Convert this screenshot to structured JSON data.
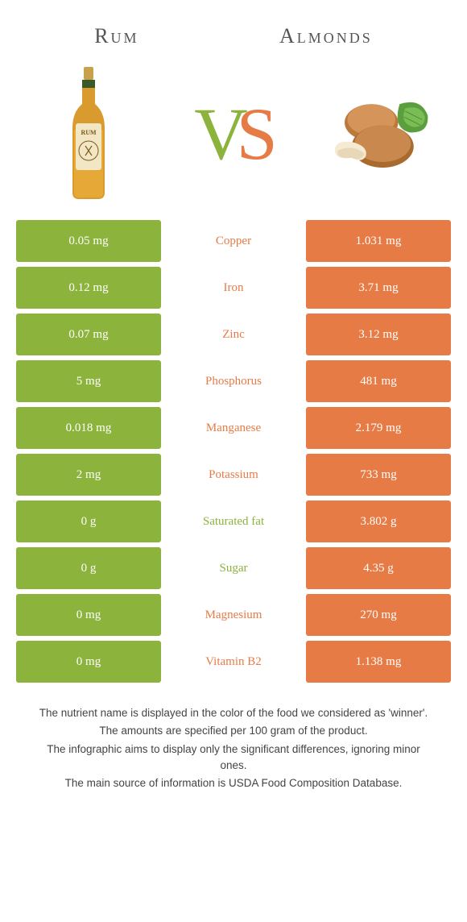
{
  "colors": {
    "left": "#8cb33b",
    "right": "#e77b46",
    "vs_v": "#8cb33b",
    "vs_s": "#e77b46"
  },
  "titles": {
    "left": "Rum",
    "right": "Almonds"
  },
  "rows": [
    {
      "left": "0.05 mg",
      "label": "Copper",
      "right": "1.031 mg",
      "winner": "right"
    },
    {
      "left": "0.12 mg",
      "label": "Iron",
      "right": "3.71 mg",
      "winner": "right"
    },
    {
      "left": "0.07 mg",
      "label": "Zinc",
      "right": "3.12 mg",
      "winner": "right"
    },
    {
      "left": "5 mg",
      "label": "Phosphorus",
      "right": "481 mg",
      "winner": "right"
    },
    {
      "left": "0.018 mg",
      "label": "Manganese",
      "right": "2.179 mg",
      "winner": "right"
    },
    {
      "left": "2 mg",
      "label": "Potassium",
      "right": "733 mg",
      "winner": "right"
    },
    {
      "left": "0 g",
      "label": "Saturated fat",
      "right": "3.802 g",
      "winner": "left"
    },
    {
      "left": "0 g",
      "label": "Sugar",
      "right": "4.35 g",
      "winner": "left"
    },
    {
      "left": "0 mg",
      "label": "Magnesium",
      "right": "270 mg",
      "winner": "right"
    },
    {
      "left": "0 mg",
      "label": "Vitamin B2",
      "right": "1.138 mg",
      "winner": "right"
    }
  ],
  "footnotes": [
    "The nutrient name is displayed in the color of the food we considered as 'winner'.",
    "The amounts are specified per 100 gram of the product.",
    "The infographic aims to display only the significant differences, ignoring minor ones.",
    "The main source of information is USDA Food Composition Database."
  ]
}
